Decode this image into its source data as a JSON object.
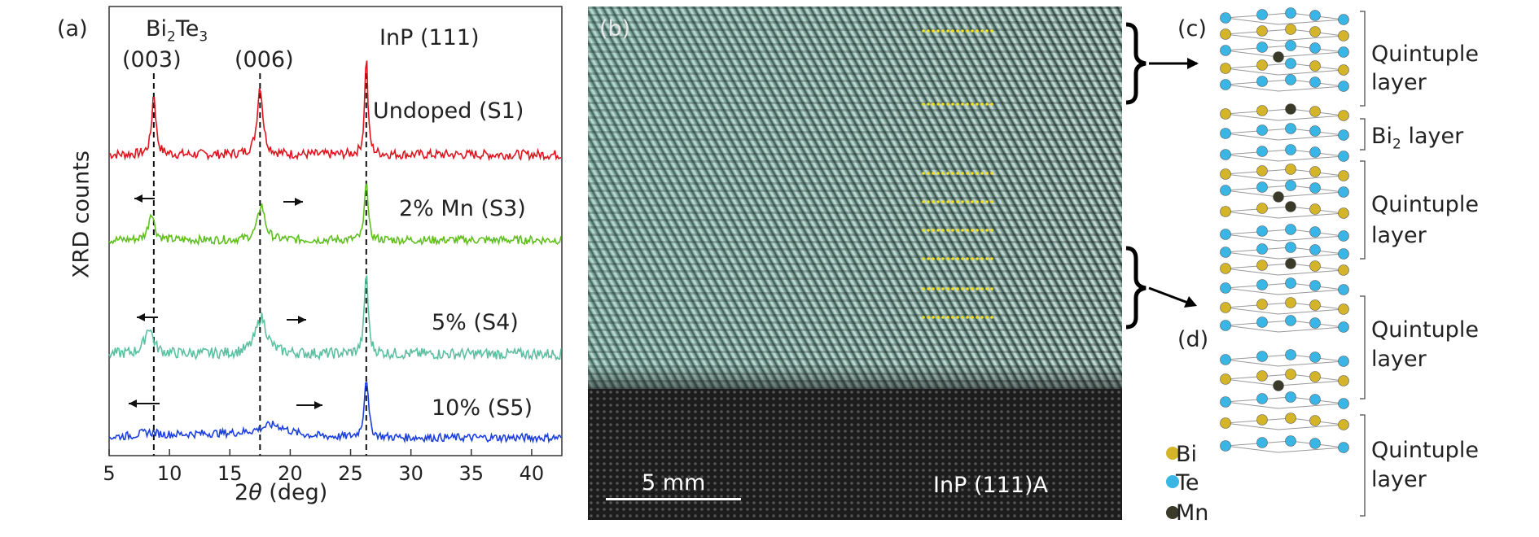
{
  "panel_a": {
    "label": "(a)",
    "ylabel": "XRD counts",
    "xlabel_prefix": "2",
    "xlabel_theta": "θ",
    "xlabel_suffix": " (deg)",
    "bi2te3_B": "Bi",
    "bi2te3_s1": "2",
    "bi2te3_T": "Te",
    "bi2te3_s2": "3",
    "peak_003": "(003)",
    "peak_006": "(006)",
    "inp_111": "InP (111)"
  },
  "chart_data": {
    "type": "line",
    "xlabel": "2θ (deg)",
    "ylabel": "XRD counts",
    "xlim": [
      5,
      42.5
    ],
    "xticks": [
      5,
      10,
      15,
      20,
      25,
      30,
      35,
      40
    ],
    "peak_markers_x": [
      8.7,
      17.5,
      26.3
    ],
    "series": [
      {
        "name": "Undoped (S1)",
        "color": "#e0141e",
        "baseline": 0.93,
        "peaks": [
          {
            "x": 8.7,
            "h": 0.58,
            "w": 0.2
          },
          {
            "x": 17.5,
            "h": 0.65,
            "w": 0.28
          },
          {
            "x": 26.3,
            "h": 0.95,
            "w": 0.15
          }
        ]
      },
      {
        "name": "2% Mn (S3)",
        "color": "#5fbf1c",
        "baseline": 0.62,
        "peaks": [
          {
            "x": 8.5,
            "h": 0.3,
            "w": 0.28
          },
          {
            "x": 17.6,
            "h": 0.38,
            "w": 0.35
          },
          {
            "x": 26.3,
            "h": 0.7,
            "w": 0.15
          }
        ]
      },
      {
        "name": "5% (S4)",
        "color": "#5cc0a0",
        "baseline": 0.3,
        "peaks": [
          {
            "x": 8.3,
            "h": 0.22,
            "w": 0.4
          },
          {
            "x": 17.6,
            "h": 0.3,
            "w": 0.55
          },
          {
            "x": 26.3,
            "h": 0.68,
            "w": 0.18
          }
        ]
      },
      {
        "name": "10% (S5)",
        "color": "#1d3fe0",
        "baseline": 0.0,
        "peaks": [
          {
            "x": 8.2,
            "h": 0.04,
            "w": 1.0
          },
          {
            "x": 18.6,
            "h": 0.12,
            "w": 1.4
          },
          {
            "x": 26.3,
            "h": 0.68,
            "w": 0.2
          }
        ]
      }
    ]
  },
  "panel_b": {
    "label": "(b)",
    "scale_text": "5 mm",
    "substrate_text": "InP (111)A"
  },
  "panel_c": {
    "label": "(c)",
    "ql_upper_1": "Quintuple",
    "ql_upper_2": "layer",
    "bi2_B": "Bi",
    "bi2_sub": "2",
    "bi2_rest": " layer",
    "ql_mid_1": "Quintuple",
    "ql_mid_2": "layer"
  },
  "panel_d": {
    "label": "(d)",
    "ql_upper_1": "Quintuple",
    "ql_upper_2": "layer",
    "ql_lower_1": "Quintuple",
    "ql_lower_2": "layer"
  },
  "legend": {
    "bi": "Bi",
    "te": "Te",
    "mn": "Mn",
    "bi_color": "#d4b52a",
    "te_color": "#3ab6e6",
    "mn_color": "#3a3a28"
  }
}
